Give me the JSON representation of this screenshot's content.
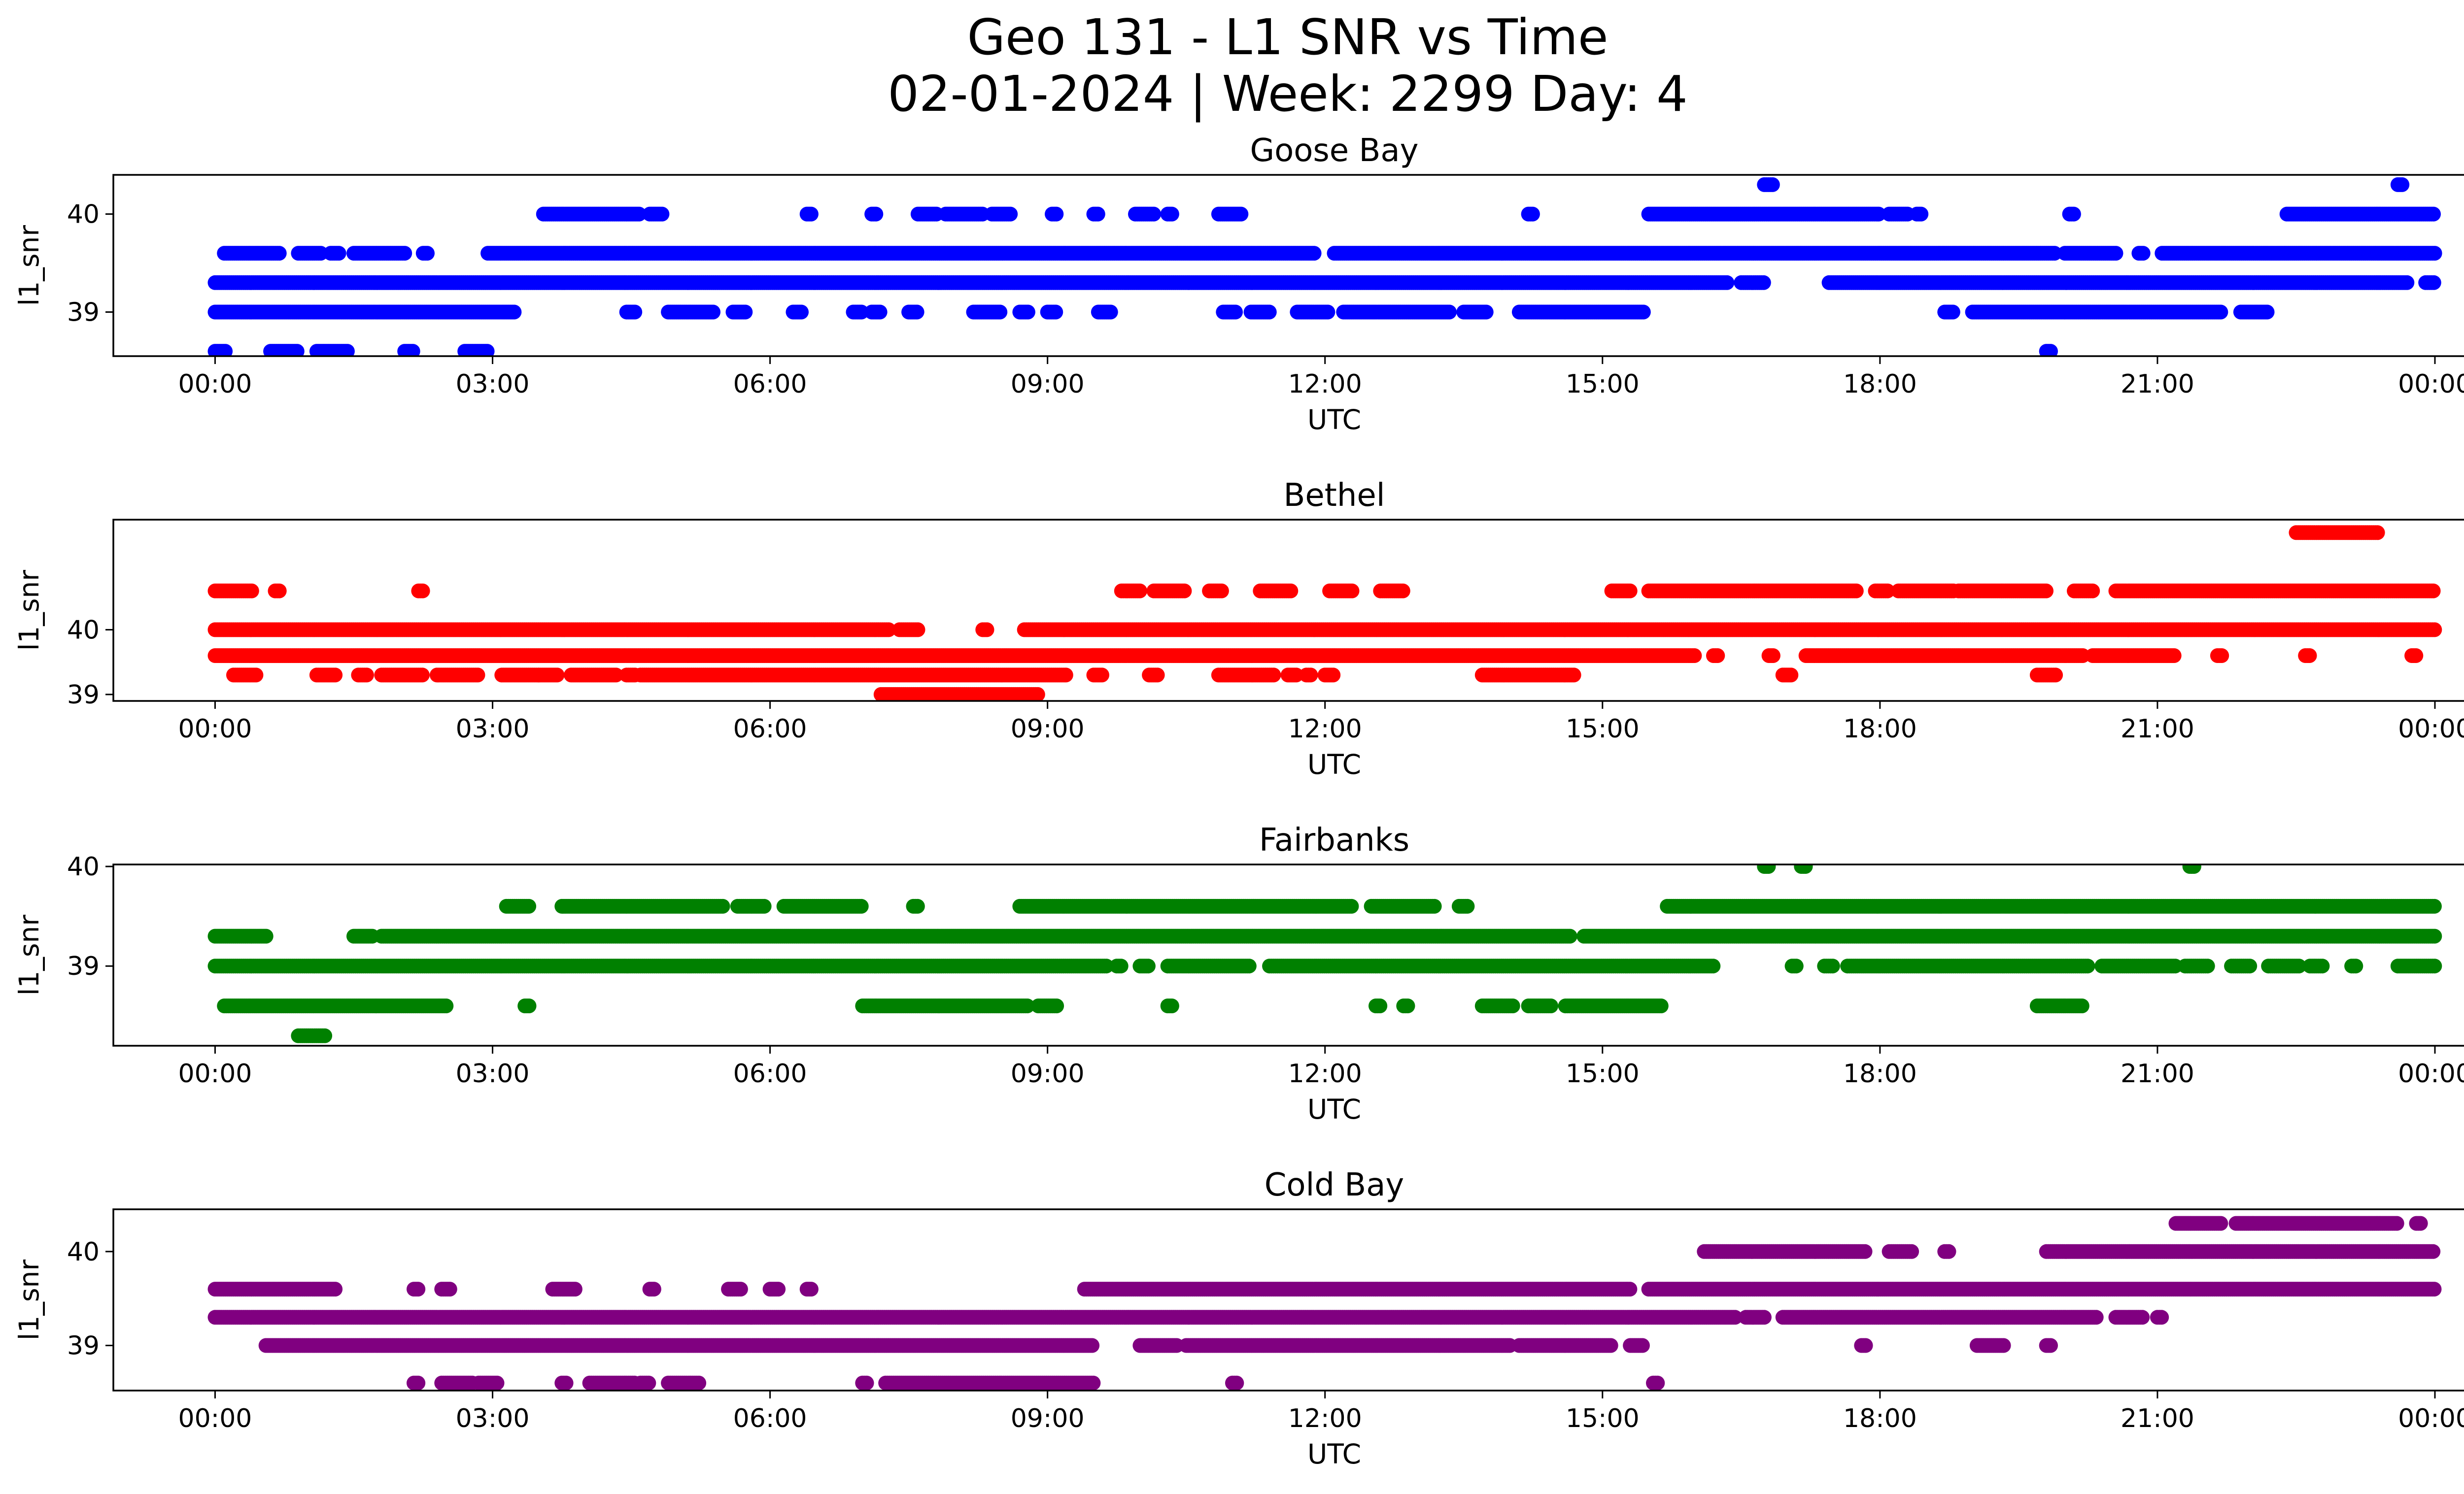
{
  "figure": {
    "title_line1": "Geo 131 - L1 SNR vs Time",
    "title_line2": "02-01-2024 | Week: 2299 Day: 4"
  },
  "chart_data": [
    {
      "type": "scatter",
      "title": "Goose Bay",
      "xlabel": "UTC",
      "ylabel": "l1_snr",
      "color": "#0000ff",
      "xlim_hours": [
        -1.1,
        25.3
      ],
      "ylim": [
        38.55,
        40.4
      ],
      "x_ticks": [
        "00:00",
        "03:00",
        "06:00",
        "09:00",
        "12:00",
        "15:00",
        "18:00",
        "21:00",
        "00:00"
      ],
      "y_ticks": [
        39,
        40
      ],
      "bands": [
        {
          "y": 38.6,
          "segments": [
            [
              0.0,
              0.12
            ],
            [
              0.6,
              0.9
            ],
            [
              1.1,
              1.45
            ],
            [
              2.05,
              2.15
            ],
            [
              2.7,
              2.95
            ],
            [
              19.8,
              19.85
            ]
          ]
        },
        {
          "y": 39.0,
          "segments": [
            [
              0.0,
              3.25
            ],
            [
              4.45,
              4.55
            ],
            [
              4.9,
              5.4
            ],
            [
              5.6,
              5.75
            ],
            [
              6.25,
              6.35
            ],
            [
              6.9,
              7.0
            ],
            [
              7.1,
              7.2
            ],
            [
              7.5,
              7.6
            ],
            [
              8.2,
              8.5
            ],
            [
              8.7,
              8.8
            ],
            [
              9.0,
              9.1
            ],
            [
              9.55,
              9.7
            ],
            [
              10.9,
              11.05
            ],
            [
              11.2,
              11.4
            ],
            [
              11.7,
              12.05
            ],
            [
              12.2,
              13.35
            ],
            [
              13.5,
              13.75
            ],
            [
              14.1,
              15.45
            ],
            [
              18.7,
              18.8
            ],
            [
              19.0,
              21.7
            ],
            [
              21.9,
              22.2
            ]
          ]
        },
        {
          "y": 39.3,
          "segments": [
            [
              0.0,
              16.35
            ],
            [
              16.5,
              16.75
            ],
            [
              17.45,
              23.7
            ],
            [
              23.9,
              24.0
            ]
          ]
        },
        {
          "y": 39.6,
          "segments": [
            [
              0.1,
              0.7
            ],
            [
              0.9,
              1.15
            ],
            [
              1.25,
              1.35
            ],
            [
              1.5,
              2.05
            ],
            [
              2.25,
              2.3
            ],
            [
              2.95,
              11.9
            ],
            [
              12.1,
              19.9
            ],
            [
              20.0,
              20.55
            ],
            [
              20.8,
              20.85
            ],
            [
              21.05,
              24.0
            ]
          ]
        },
        {
          "y": 40.0,
          "segments": [
            [
              3.55,
              4.6
            ],
            [
              4.7,
              4.85
            ],
            [
              6.4,
              6.45
            ],
            [
              7.1,
              7.15
            ],
            [
              7.6,
              7.8
            ],
            [
              7.9,
              8.3
            ],
            [
              8.4,
              8.6
            ],
            [
              9.05,
              9.1
            ],
            [
              9.5,
              9.55
            ],
            [
              9.95,
              10.15
            ],
            [
              10.3,
              10.35
            ],
            [
              10.85,
              11.1
            ],
            [
              14.2,
              14.25
            ],
            [
              15.5,
              18.0
            ],
            [
              18.1,
              18.3
            ],
            [
              18.4,
              18.45
            ],
            [
              20.05,
              20.1
            ],
            [
              22.4,
              24.0
            ]
          ]
        },
        {
          "y": 40.3,
          "segments": [
            [
              16.75,
              16.85
            ],
            [
              23.6,
              23.65
            ]
          ]
        }
      ]
    },
    {
      "type": "scatter",
      "title": "Bethel",
      "xlabel": "UTC",
      "ylabel": "l1_snr",
      "color": "#ff0000",
      "xlim_hours": [
        -1.1,
        25.3
      ],
      "ylim": [
        38.9,
        41.7
      ],
      "x_ticks": [
        "00:00",
        "03:00",
        "06:00",
        "09:00",
        "12:00",
        "15:00",
        "18:00",
        "21:00",
        "00:00"
      ],
      "y_ticks": [
        39,
        40
      ],
      "bands": [
        {
          "y": 39.0,
          "segments": [
            [
              7.2,
              8.9
            ]
          ]
        },
        {
          "y": 39.3,
          "segments": [
            [
              0.2,
              0.45
            ],
            [
              1.1,
              1.3
            ],
            [
              1.55,
              1.65
            ],
            [
              1.8,
              2.25
            ],
            [
              2.4,
              2.85
            ],
            [
              3.1,
              3.5
            ],
            [
              3.5,
              3.7
            ],
            [
              3.85,
              4.35
            ],
            [
              4.45,
              4.55
            ],
            [
              4.6,
              9.2
            ],
            [
              9.5,
              9.6
            ],
            [
              10.1,
              10.2
            ],
            [
              10.85,
              11.45
            ],
            [
              11.6,
              11.7
            ],
            [
              11.8,
              11.85
            ],
            [
              12.0,
              12.1
            ],
            [
              13.7,
              14.7
            ],
            [
              19.7,
              19.9
            ],
            [
              16.95,
              17.05
            ]
          ]
        },
        {
          "y": 39.6,
          "segments": [
            [
              0.0,
              16.0
            ],
            [
              16.2,
              16.25
            ],
            [
              16.8,
              16.85
            ],
            [
              17.2,
              20.2
            ],
            [
              20.3,
              21.2
            ],
            [
              21.65,
              21.7
            ],
            [
              22.6,
              22.65
            ],
            [
              23.75,
              23.8
            ]
          ]
        },
        {
          "y": 40.0,
          "segments": [
            [
              0.0,
              7.3
            ],
            [
              7.4,
              7.6
            ],
            [
              8.3,
              8.35
            ],
            [
              8.75,
              24.0
            ]
          ]
        },
        {
          "y": 40.6,
          "segments": [
            [
              0.0,
              0.4
            ],
            [
              0.65,
              0.7
            ],
            [
              2.2,
              2.25
            ],
            [
              9.8,
              10.0
            ],
            [
              10.15,
              10.5
            ],
            [
              10.75,
              10.9
            ],
            [
              11.3,
              11.65
            ],
            [
              12.05,
              12.3
            ],
            [
              12.6,
              12.85
            ],
            [
              15.1,
              15.3
            ],
            [
              15.5,
              17.75
            ],
            [
              17.95,
              18.1
            ],
            [
              18.2,
              18.8
            ],
            [
              18.85,
              19.8
            ],
            [
              20.1,
              20.3
            ],
            [
              20.55,
              24.0
            ]
          ]
        },
        {
          "y": 41.5,
          "segments": [
            [
              22.5,
              23.4
            ]
          ]
        }
      ]
    },
    {
      "type": "scatter",
      "title": "Fairbanks",
      "xlabel": "UTC",
      "ylabel": "l1_snr",
      "color": "#008000",
      "xlim_hours": [
        -1.1,
        25.3
      ],
      "ylim": [
        38.2,
        40.02
      ],
      "x_ticks": [
        "00:00",
        "03:00",
        "06:00",
        "09:00",
        "12:00",
        "15:00",
        "18:00",
        "21:00",
        "00:00"
      ],
      "y_ticks": [
        39,
        40
      ],
      "bands": [
        {
          "y": 38.3,
          "segments": [
            [
              0.9,
              1.2
            ]
          ]
        },
        {
          "y": 38.6,
          "segments": [
            [
              0.1,
              2.5
            ],
            [
              3.35,
              3.4
            ],
            [
              7.0,
              8.8
            ],
            [
              8.9,
              9.1
            ],
            [
              10.3,
              10.35
            ],
            [
              12.55,
              12.6
            ],
            [
              12.85,
              12.9
            ],
            [
              13.7,
              14.05
            ],
            [
              14.2,
              14.45
            ],
            [
              14.6,
              15.65
            ],
            [
              19.7,
              20.2
            ]
          ]
        },
        {
          "y": 39.0,
          "segments": [
            [
              0.0,
              9.65
            ],
            [
              9.75,
              9.8
            ],
            [
              10.0,
              10.1
            ],
            [
              10.3,
              11.2
            ],
            [
              11.4,
              16.2
            ],
            [
              17.05,
              17.1
            ],
            [
              17.4,
              17.5
            ],
            [
              17.65,
              20.25
            ],
            [
              20.4,
              21.2
            ],
            [
              21.3,
              21.55
            ],
            [
              21.8,
              22.0
            ],
            [
              22.2,
              22.55
            ],
            [
              22.65,
              22.8
            ],
            [
              23.1,
              23.15
            ],
            [
              23.6,
              24.0
            ]
          ]
        },
        {
          "y": 39.3,
          "segments": [
            [
              0.0,
              0.55
            ],
            [
              1.5,
              1.7
            ],
            [
              1.8,
              14.65
            ],
            [
              14.8,
              24.0
            ]
          ]
        },
        {
          "y": 39.6,
          "segments": [
            [
              3.15,
              3.4
            ],
            [
              3.75,
              5.5
            ],
            [
              5.65,
              5.95
            ],
            [
              6.15,
              7.0
            ],
            [
              7.55,
              7.6
            ],
            [
              8.7,
              12.3
            ],
            [
              12.5,
              13.2
            ],
            [
              13.45,
              13.55
            ],
            [
              15.7,
              24.0
            ]
          ]
        },
        {
          "y": 40.0,
          "segments": [
            [
              16.75,
              16.8
            ],
            [
              17.15,
              17.2
            ],
            [
              21.35,
              21.4
            ]
          ]
        }
      ]
    },
    {
      "type": "scatter",
      "title": "Cold Bay",
      "xlabel": "UTC",
      "ylabel": "l1_snr",
      "color": "#800080",
      "xlim_hours": [
        -1.1,
        25.3
      ],
      "ylim": [
        38.52,
        40.45
      ],
      "x_ticks": [
        "00:00",
        "03:00",
        "06:00",
        "09:00",
        "12:00",
        "15:00",
        "18:00",
        "21:00",
        "00:00"
      ],
      "y_ticks": [
        39,
        40
      ],
      "bands": [
        {
          "y": 38.6,
          "segments": [
            [
              2.15,
              2.2
            ],
            [
              2.45,
              2.8
            ],
            [
              2.85,
              3.05
            ],
            [
              3.75,
              3.8
            ],
            [
              4.05,
              4.55
            ],
            [
              4.6,
              4.7
            ],
            [
              4.9,
              5.25
            ],
            [
              7.0,
              7.05
            ],
            [
              7.25,
              9.5
            ],
            [
              11.0,
              11.05
            ],
            [
              15.55,
              15.6
            ]
          ]
        },
        {
          "y": 39.0,
          "segments": [
            [
              0.55,
              9.5
            ],
            [
              10.0,
              10.4
            ],
            [
              10.5,
              14.0
            ],
            [
              14.1,
              15.1
            ],
            [
              15.3,
              15.45
            ],
            [
              17.8,
              17.85
            ],
            [
              19.05,
              19.35
            ],
            [
              19.8,
              19.85
            ]
          ]
        },
        {
          "y": 39.3,
          "segments": [
            [
              0.0,
              16.45
            ],
            [
              16.55,
              16.75
            ],
            [
              16.95,
              20.35
            ],
            [
              20.55,
              20.85
            ],
            [
              21.0,
              21.05
            ]
          ]
        },
        {
          "y": 39.6,
          "segments": [
            [
              0.0,
              1.3
            ],
            [
              2.15,
              2.2
            ],
            [
              2.45,
              2.55
            ],
            [
              3.65,
              3.9
            ],
            [
              4.7,
              4.75
            ],
            [
              5.55,
              5.7
            ],
            [
              6.0,
              6.1
            ],
            [
              6.4,
              6.45
            ],
            [
              9.4,
              15.3
            ],
            [
              15.5,
              24.0
            ]
          ]
        },
        {
          "y": 40.0,
          "segments": [
            [
              16.1,
              17.85
            ],
            [
              18.1,
              18.35
            ],
            [
              18.7,
              18.75
            ],
            [
              19.8,
              24.0
            ]
          ]
        },
        {
          "y": 40.3,
          "segments": [
            [
              21.2,
              21.7
            ],
            [
              21.85,
              23.6
            ],
            [
              23.8,
              23.85
            ]
          ]
        }
      ]
    }
  ]
}
